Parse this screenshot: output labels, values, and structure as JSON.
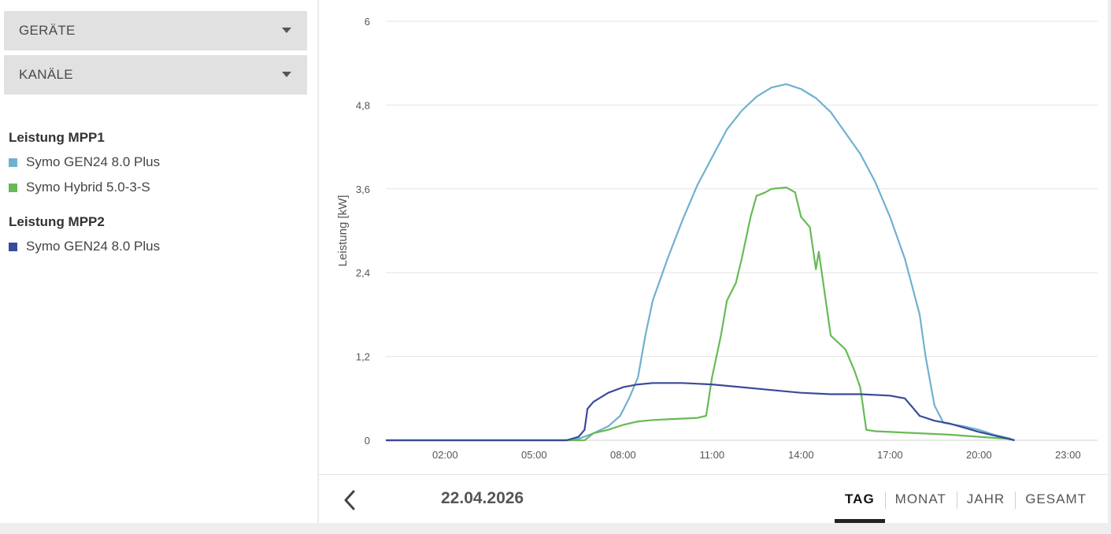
{
  "filters": {
    "devices_label": "GERÄTE",
    "channels_label": "KANÄLE"
  },
  "legend": {
    "groups": [
      {
        "title": "Leistung MPP1",
        "items": [
          {
            "label": "Symo GEN24 8.0 Plus",
            "color": "#6fb1d0"
          },
          {
            "label": "Symo Hybrid 5.0-3-S",
            "color": "#66bb55"
          }
        ]
      },
      {
        "title": "Leistung MPP2",
        "items": [
          {
            "label": "Symo GEN24 8.0 Plus",
            "color": "#3a4a9a"
          }
        ]
      }
    ]
  },
  "footer": {
    "date": "22.04.2026",
    "tabs": [
      "TAG",
      "MONAT",
      "JAHR",
      "GESAMT"
    ],
    "active_tab": "TAG"
  },
  "chart_data": {
    "type": "line",
    "ylabel": "Leistung [kW]",
    "ylim": [
      0,
      6
    ],
    "yticks": [
      "0",
      "1,2",
      "2,4",
      "3,6",
      "4,8",
      "6"
    ],
    "xlim": [
      0,
      24
    ],
    "xticks": [
      "02:00",
      "05:00",
      "08:00",
      "11:00",
      "14:00",
      "17:00",
      "20:00",
      "23:00"
    ],
    "grid": true,
    "series": [
      {
        "name": "Symo GEN24 8.0 Plus",
        "group": "Leistung MPP1",
        "color": "#6fb1d0",
        "points": [
          [
            0,
            0
          ],
          [
            6,
            0
          ],
          [
            6.5,
            0.02
          ],
          [
            7,
            0.1
          ],
          [
            7.5,
            0.2
          ],
          [
            7.9,
            0.35
          ],
          [
            8.2,
            0.6
          ],
          [
            8.5,
            0.9
          ],
          [
            8.75,
            1.5
          ],
          [
            9,
            2
          ],
          [
            9.5,
            2.6
          ],
          [
            10,
            3.15
          ],
          [
            10.5,
            3.65
          ],
          [
            11,
            4.05
          ],
          [
            11.5,
            4.45
          ],
          [
            12,
            4.72
          ],
          [
            12.5,
            4.92
          ],
          [
            13,
            5.05
          ],
          [
            13.5,
            5.1
          ],
          [
            14,
            5.03
          ],
          [
            14.5,
            4.9
          ],
          [
            15,
            4.7
          ],
          [
            15.5,
            4.4
          ],
          [
            16,
            4.1
          ],
          [
            16.5,
            3.7
          ],
          [
            17,
            3.2
          ],
          [
            17.5,
            2.6
          ],
          [
            18,
            1.8
          ],
          [
            18.2,
            1.2
          ],
          [
            18.5,
            0.5
          ],
          [
            18.8,
            0.25
          ],
          [
            19.5,
            0.2
          ],
          [
            20,
            0.15
          ],
          [
            20.5,
            0.08
          ],
          [
            21,
            0.03
          ],
          [
            21.2,
            0
          ]
        ]
      },
      {
        "name": "Symo Hybrid 5.0-3-S",
        "group": "Leistung MPP1",
        "color": "#66bb55",
        "points": [
          [
            0,
            0
          ],
          [
            6.7,
            0
          ],
          [
            7,
            0.1
          ],
          [
            7.5,
            0.15
          ],
          [
            8,
            0.22
          ],
          [
            8.5,
            0.27
          ],
          [
            9,
            0.29
          ],
          [
            9.5,
            0.3
          ],
          [
            10,
            0.31
          ],
          [
            10.5,
            0.32
          ],
          [
            10.8,
            0.35
          ],
          [
            11,
            0.9
          ],
          [
            11.3,
            1.5
          ],
          [
            11.5,
            2
          ],
          [
            11.8,
            2.25
          ],
          [
            12,
            2.6
          ],
          [
            12.3,
            3.2
          ],
          [
            12.5,
            3.5
          ],
          [
            12.8,
            3.55
          ],
          [
            13,
            3.6
          ],
          [
            13.5,
            3.62
          ],
          [
            13.8,
            3.55
          ],
          [
            14,
            3.2
          ],
          [
            14.3,
            3.05
          ],
          [
            14.5,
            2.45
          ],
          [
            14.6,
            2.7
          ],
          [
            14.8,
            2.1
          ],
          [
            15,
            1.5
          ],
          [
            15.5,
            1.3
          ],
          [
            15.8,
            1.0
          ],
          [
            16,
            0.75
          ],
          [
            16.2,
            0.15
          ],
          [
            16.5,
            0.13
          ],
          [
            17,
            0.12
          ],
          [
            18,
            0.1
          ],
          [
            19,
            0.08
          ],
          [
            20,
            0.05
          ],
          [
            21,
            0.02
          ],
          [
            21.2,
            0
          ]
        ]
      },
      {
        "name": "Symo GEN24 8.0 Plus",
        "group": "Leistung MPP2",
        "color": "#3a4a9a",
        "points": [
          [
            0,
            0
          ],
          [
            6.1,
            0
          ],
          [
            6.5,
            0.05
          ],
          [
            6.7,
            0.15
          ],
          [
            6.8,
            0.45
          ],
          [
            7,
            0.55
          ],
          [
            7.5,
            0.68
          ],
          [
            8,
            0.76
          ],
          [
            8.5,
            0.8
          ],
          [
            9,
            0.82
          ],
          [
            10,
            0.82
          ],
          [
            11,
            0.8
          ],
          [
            12,
            0.76
          ],
          [
            13,
            0.72
          ],
          [
            14,
            0.68
          ],
          [
            15,
            0.66
          ],
          [
            16,
            0.66
          ],
          [
            17,
            0.64
          ],
          [
            17.5,
            0.6
          ],
          [
            17.8,
            0.45
          ],
          [
            18,
            0.35
          ],
          [
            18.5,
            0.28
          ],
          [
            19,
            0.24
          ],
          [
            19.5,
            0.18
          ],
          [
            20,
            0.12
          ],
          [
            20.5,
            0.07
          ],
          [
            21,
            0.02
          ],
          [
            21.2,
            0
          ]
        ]
      }
    ]
  }
}
